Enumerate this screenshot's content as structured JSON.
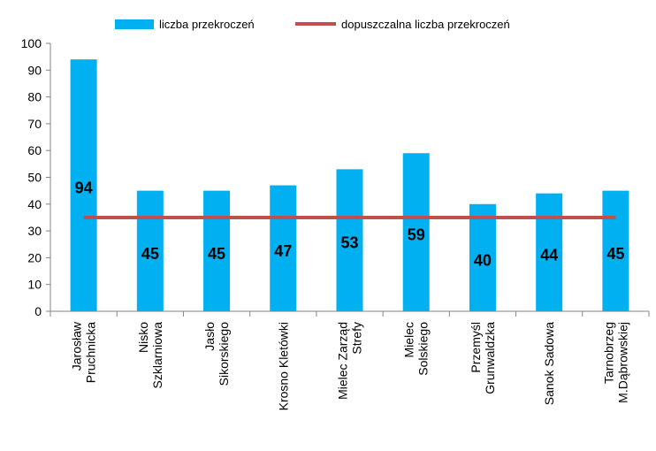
{
  "chart_data": {
    "type": "bar",
    "categories": [
      [
        "Jarosław",
        "Pruchnicka"
      ],
      [
        "Nisko",
        "Szklarniowa"
      ],
      [
        "Jasło",
        "Sikorskiego"
      ],
      [
        "Krosno Kletówki"
      ],
      [
        "Mielec Zarząd",
        "Strefy"
      ],
      [
        "Mielec",
        "Solskiego"
      ],
      [
        "Przemyśl",
        "Grunwaldzka"
      ],
      [
        "Sanok Sadowa"
      ],
      [
        "Tarnobrzeg",
        "M.Dąbrowskiej"
      ]
    ],
    "series": [
      {
        "name": "liczba przekroczeń",
        "type": "bar",
        "color": "#00B0F0",
        "values": [
          94,
          45,
          45,
          47,
          53,
          59,
          40,
          44,
          45
        ]
      },
      {
        "name": "dopuszczalna liczba przekroczeń",
        "type": "line",
        "color": "#C0504D",
        "values": [
          35,
          35,
          35,
          35,
          35,
          35,
          35,
          35,
          35
        ]
      }
    ],
    "data_labels": [
      "94",
      "45",
      "45",
      "47",
      "53",
      "59",
      "40",
      "44",
      "45"
    ],
    "ylim": [
      0,
      100
    ],
    "yticks": [
      "0",
      "10",
      "20",
      "30",
      "40",
      "50",
      "60",
      "70",
      "80",
      "90",
      "100"
    ],
    "legend_position": "top",
    "grid": false
  }
}
